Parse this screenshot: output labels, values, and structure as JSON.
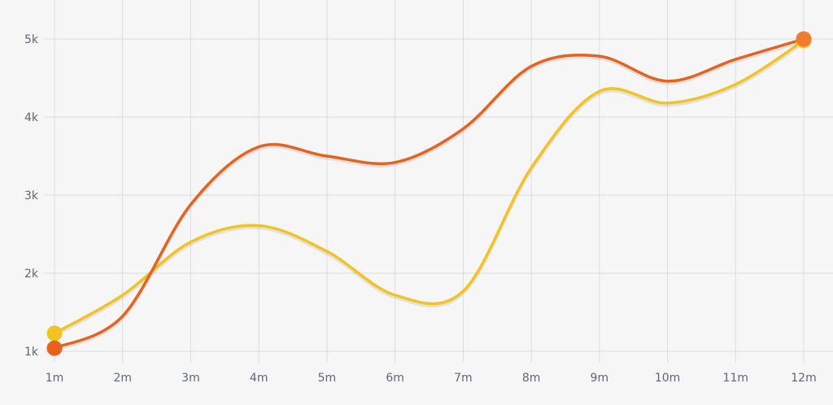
{
  "chart_data": {
    "type": "line",
    "title": "",
    "xlabel": "",
    "ylabel": "",
    "categories": [
      "1m",
      "2m",
      "3m",
      "4m",
      "5m",
      "6m",
      "7m",
      "8m",
      "9m",
      "10m",
      "11m",
      "12m"
    ],
    "y_ticks": [
      "1k",
      "2k",
      "3k",
      "4k",
      "5k"
    ],
    "y_tick_values": [
      1000,
      2000,
      3000,
      4000,
      5000
    ],
    "ylim": [
      1000,
      5000
    ],
    "grid": true,
    "legend": "none",
    "series": [
      {
        "color": "#f2c41d",
        "values": [
          1230,
          1720,
          2400,
          2610,
          2280,
          1720,
          1770,
          3350,
          4330,
          4180,
          4420,
          4980
        ]
      },
      {
        "color": "#e8621a",
        "values": [
          1040,
          1450,
          2880,
          3620,
          3500,
          3420,
          3850,
          4650,
          4780,
          4460,
          4740,
          5000
        ]
      }
    ]
  }
}
